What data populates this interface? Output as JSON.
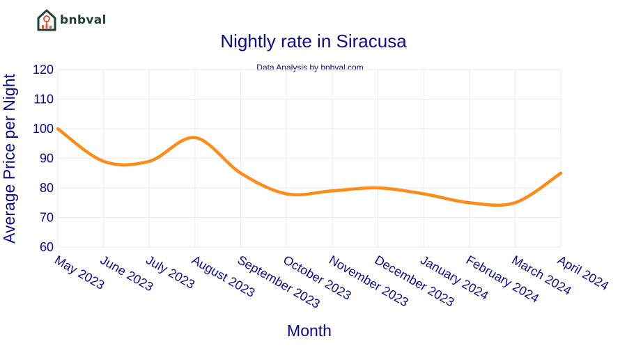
{
  "branding": {
    "logo_text": "bnbval"
  },
  "chart_data": {
    "type": "line",
    "title": "Nightly rate in Siracusa",
    "subtitle": "Data Analysis by bnbval.com",
    "xlabel": "Month",
    "ylabel": "Average Price per Night",
    "ylim": [
      60,
      120
    ],
    "yticks": [
      60,
      70,
      80,
      90,
      100,
      110,
      120
    ],
    "grid": true,
    "categories": [
      "May 2023",
      "June 2023",
      "July 2023",
      "August 2023",
      "September 2023",
      "October 2023",
      "November 2023",
      "December 2023",
      "January 2024",
      "February 2024",
      "March 2024",
      "April 2024"
    ],
    "series": [
      {
        "values": [
          100,
          89,
          89,
          97,
          85,
          78,
          79,
          80,
          78,
          75,
          75,
          85
        ],
        "color": "#ff8c1a"
      }
    ]
  }
}
